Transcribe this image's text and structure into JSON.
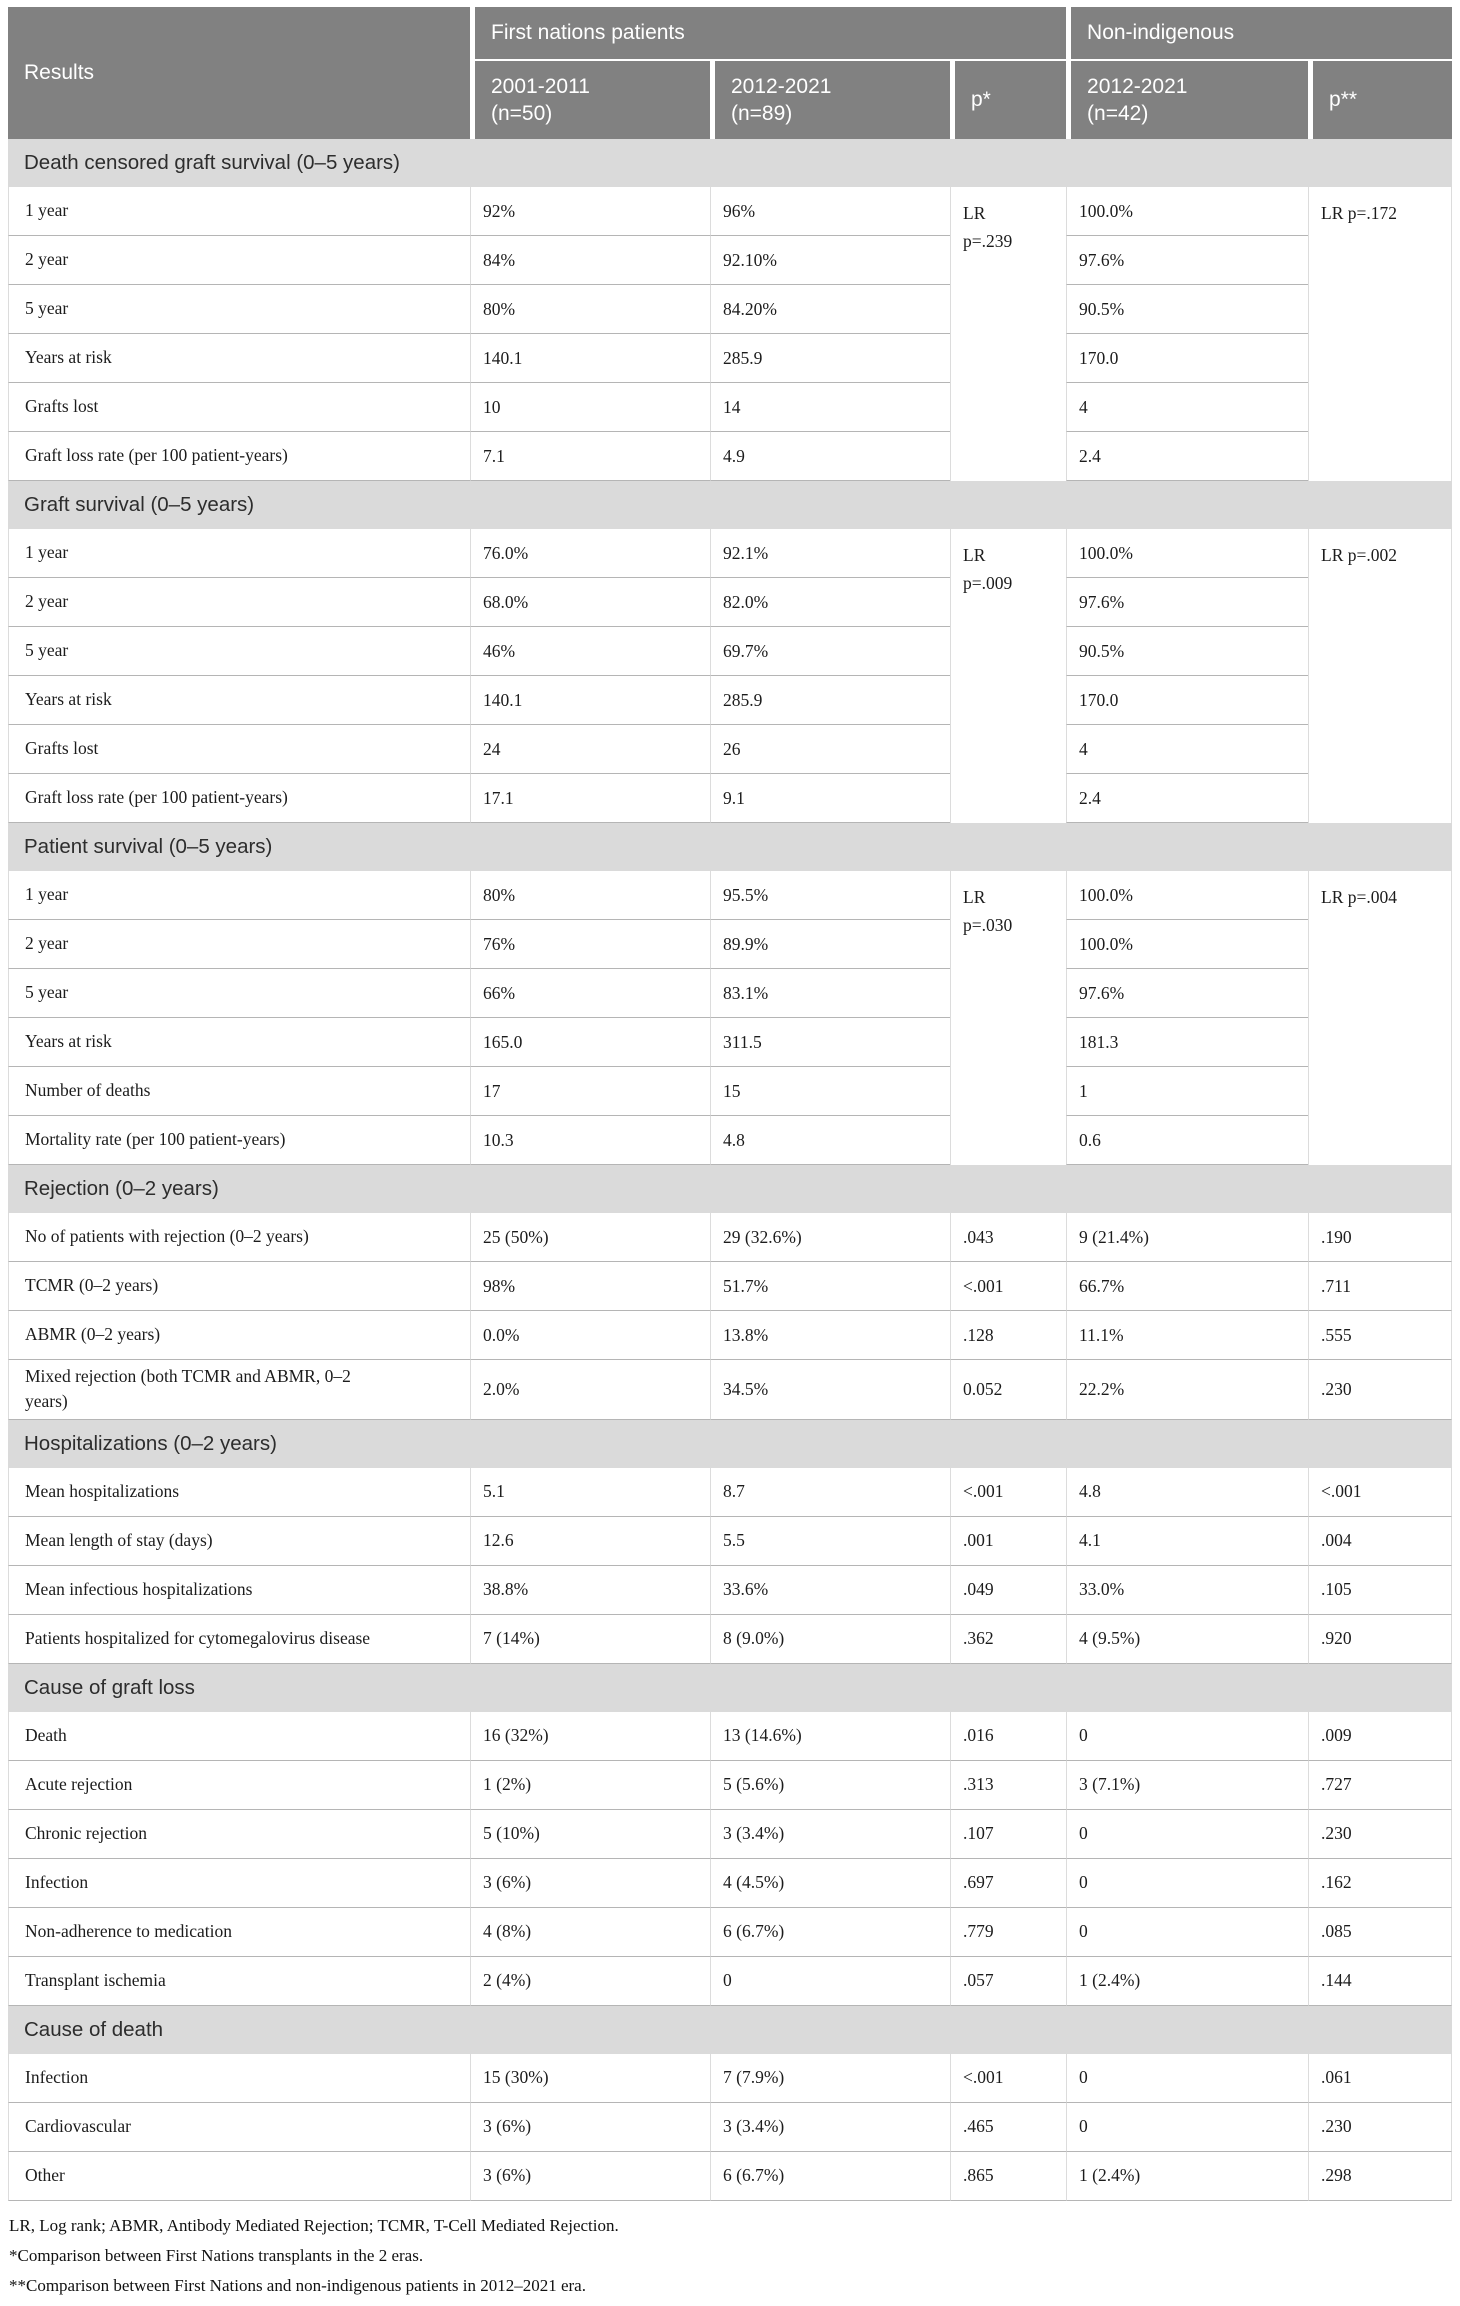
{
  "table": {
    "header": {
      "results": "Results",
      "group_first_nations": "First nations patients",
      "group_non_indigenous": "Non-indigenous",
      "sub_era1": "2001-2011\n(n=50)",
      "sub_era2": "2012-2021\n(n=89)",
      "sub_p_era": "p*",
      "sub_nonind": "2012-2021\n(n=42)",
      "sub_p_group": "p**"
    },
    "sections": [
      {
        "title": "Death censored graft survival (0–5 years)",
        "p_era_span": "LR\np=.239",
        "p_group_span": "LR p=.172",
        "rows": [
          {
            "label": "1 year",
            "v_2001_2011": "92%",
            "v_2012_2021": "96%",
            "v_nonind": "100.0%"
          },
          {
            "label": "2 year",
            "v_2001_2011": "84%",
            "v_2012_2021": "92.10%",
            "v_nonind": "97.6%"
          },
          {
            "label": "5 year",
            "v_2001_2011": "80%",
            "v_2012_2021": "84.20%",
            "v_nonind": "90.5%"
          },
          {
            "label": "Years at risk",
            "v_2001_2011": "140.1",
            "v_2012_2021": "285.9",
            "v_nonind": "170.0"
          },
          {
            "label": "Grafts lost",
            "v_2001_2011": "10",
            "v_2012_2021": "14",
            "v_nonind": "4"
          },
          {
            "label": "Graft loss rate (per 100 patient-years)",
            "v_2001_2011": "7.1",
            "v_2012_2021": "4.9",
            "v_nonind": "2.4"
          }
        ]
      },
      {
        "title": "Graft survival (0–5 years)",
        "p_era_span": "LR\np=.009",
        "p_group_span": "LR p=.002",
        "rows": [
          {
            "label": "1 year",
            "v_2001_2011": "76.0%",
            "v_2012_2021": "92.1%",
            "v_nonind": "100.0%"
          },
          {
            "label": "2 year",
            "v_2001_2011": "68.0%",
            "v_2012_2021": "82.0%",
            "v_nonind": "97.6%"
          },
          {
            "label": "5 year",
            "v_2001_2011": "46%",
            "v_2012_2021": "69.7%",
            "v_nonind": "90.5%"
          },
          {
            "label": "Years at risk",
            "v_2001_2011": "140.1",
            "v_2012_2021": "285.9",
            "v_nonind": "170.0"
          },
          {
            "label": "Grafts lost",
            "v_2001_2011": "24",
            "v_2012_2021": "26",
            "v_nonind": "4"
          },
          {
            "label": "Graft loss rate (per 100 patient-years)",
            "v_2001_2011": "17.1",
            "v_2012_2021": "9.1",
            "v_nonind": "2.4"
          }
        ]
      },
      {
        "title": "Patient survival (0–5 years)",
        "p_era_span": "LR\np=.030",
        "p_group_span": "LR p=.004",
        "rows": [
          {
            "label": "1 year",
            "v_2001_2011": "80%",
            "v_2012_2021": "95.5%",
            "v_nonind": "100.0%"
          },
          {
            "label": "2 year",
            "v_2001_2011": "76%",
            "v_2012_2021": "89.9%",
            "v_nonind": "100.0%"
          },
          {
            "label": "5 year",
            "v_2001_2011": "66%",
            "v_2012_2021": "83.1%",
            "v_nonind": "97.6%"
          },
          {
            "label": "Years at risk",
            "v_2001_2011": "165.0",
            "v_2012_2021": "311.5",
            "v_nonind": "181.3"
          },
          {
            "label": "Number of deaths",
            "v_2001_2011": "17",
            "v_2012_2021": "15",
            "v_nonind": "1"
          },
          {
            "label": "Mortality rate (per 100 patient-years)",
            "v_2001_2011": "10.3",
            "v_2012_2021": "4.8",
            "v_nonind": "0.6"
          }
        ]
      },
      {
        "title": "Rejection (0–2 years)",
        "p_era_span": null,
        "p_group_span": null,
        "rows": [
          {
            "label": "No of patients with rejection (0–2 years)",
            "v_2001_2011": "25 (50%)",
            "v_2012_2021": "29 (32.6%)",
            "p_era": ".043",
            "v_nonind": "9 (21.4%)",
            "p_group": ".190"
          },
          {
            "label": "TCMR (0–2 years)",
            "v_2001_2011": "98%",
            "v_2012_2021": "51.7%",
            "p_era": "<.001",
            "v_nonind": "66.7%",
            "p_group": ".711"
          },
          {
            "label": "ABMR (0–2 years)",
            "v_2001_2011": "0.0%",
            "v_2012_2021": "13.8%",
            "p_era": ".128",
            "v_nonind": "11.1%",
            "p_group": ".555"
          },
          {
            "label": "Mixed rejection (both TCMR and ABMR, 0–2\nyears)",
            "v_2001_2011": "2.0%",
            "v_2012_2021": "34.5%",
            "p_era": "0.052",
            "v_nonind": "22.2%",
            "p_group": ".230"
          }
        ]
      },
      {
        "title": "Hospitalizations (0–2 years)",
        "p_era_span": null,
        "p_group_span": null,
        "rows": [
          {
            "label": "Mean hospitalizations",
            "v_2001_2011": "5.1",
            "v_2012_2021": "8.7",
            "p_era": "<.001",
            "v_nonind": "4.8",
            "p_group": "<.001"
          },
          {
            "label": "Mean length of stay (days)",
            "v_2001_2011": "12.6",
            "v_2012_2021": "5.5",
            "p_era": ".001",
            "v_nonind": "4.1",
            "p_group": ".004"
          },
          {
            "label": "Mean infectious hospitalizations",
            "v_2001_2011": "38.8%",
            "v_2012_2021": "33.6%",
            "p_era": ".049",
            "v_nonind": "33.0%",
            "p_group": ".105"
          },
          {
            "label": "Patients hospitalized for cytomegalovirus disease",
            "v_2001_2011": "7 (14%)",
            "v_2012_2021": "8 (9.0%)",
            "p_era": ".362",
            "v_nonind": "4 (9.5%)",
            "p_group": ".920"
          }
        ]
      },
      {
        "title": "Cause of graft loss",
        "p_era_span": null,
        "p_group_span": null,
        "rows": [
          {
            "label": "Death",
            "v_2001_2011": "16 (32%)",
            "v_2012_2021": "13 (14.6%)",
            "p_era": ".016",
            "v_nonind": "0",
            "p_group": ".009"
          },
          {
            "label": "Acute rejection",
            "v_2001_2011": "1 (2%)",
            "v_2012_2021": "5 (5.6%)",
            "p_era": ".313",
            "v_nonind": "3 (7.1%)",
            "p_group": ".727"
          },
          {
            "label": "Chronic rejection",
            "v_2001_2011": "5 (10%)",
            "v_2012_2021": "3 (3.4%)",
            "p_era": ".107",
            "v_nonind": "0",
            "p_group": ".230"
          },
          {
            "label": "Infection",
            "v_2001_2011": "3 (6%)",
            "v_2012_2021": "4 (4.5%)",
            "p_era": ".697",
            "v_nonind": "0",
            "p_group": ".162"
          },
          {
            "label": "Non-adherence to medication",
            "v_2001_2011": "4 (8%)",
            "v_2012_2021": "6 (6.7%)",
            "p_era": ".779",
            "v_nonind": "0",
            "p_group": ".085"
          },
          {
            "label": "Transplant ischemia",
            "v_2001_2011": "2 (4%)",
            "v_2012_2021": "0",
            "p_era": ".057",
            "v_nonind": "1 (2.4%)",
            "p_group": ".144"
          }
        ]
      },
      {
        "title": "Cause of death",
        "p_era_span": null,
        "p_group_span": null,
        "rows": [
          {
            "label": "Infection",
            "v_2001_2011": "15 (30%)",
            "v_2012_2021": "7 (7.9%)",
            "p_era": "<.001",
            "v_nonind": "0",
            "p_group": ".061"
          },
          {
            "label": "Cardiovascular",
            "v_2001_2011": "3 (6%)",
            "v_2012_2021": "3 (3.4%)",
            "p_era": ".465",
            "v_nonind": "0",
            "p_group": ".230"
          },
          {
            "label": "Other",
            "v_2001_2011": "3 (6%)",
            "v_2012_2021": "6 (6.7%)",
            "p_era": ".865",
            "v_nonind": "1 (2.4%)",
            "p_group": ".298"
          }
        ]
      }
    ],
    "footnotes": [
      "LR, Log rank; ABMR, Antibody Mediated Rejection; TCMR, T-Cell Mediated Rejection.",
      "*Comparison between First Nations transplants in the 2 eras.",
      "**Comparison between First Nations and non-indigenous patients in 2012–2021 era."
    ],
    "colors": {
      "header_bg": "#818181",
      "header_text": "#ffffff",
      "section_band_bg": "#dadada",
      "row_border": "#b5b5b5",
      "column_border": "#dcdcdc"
    }
  }
}
